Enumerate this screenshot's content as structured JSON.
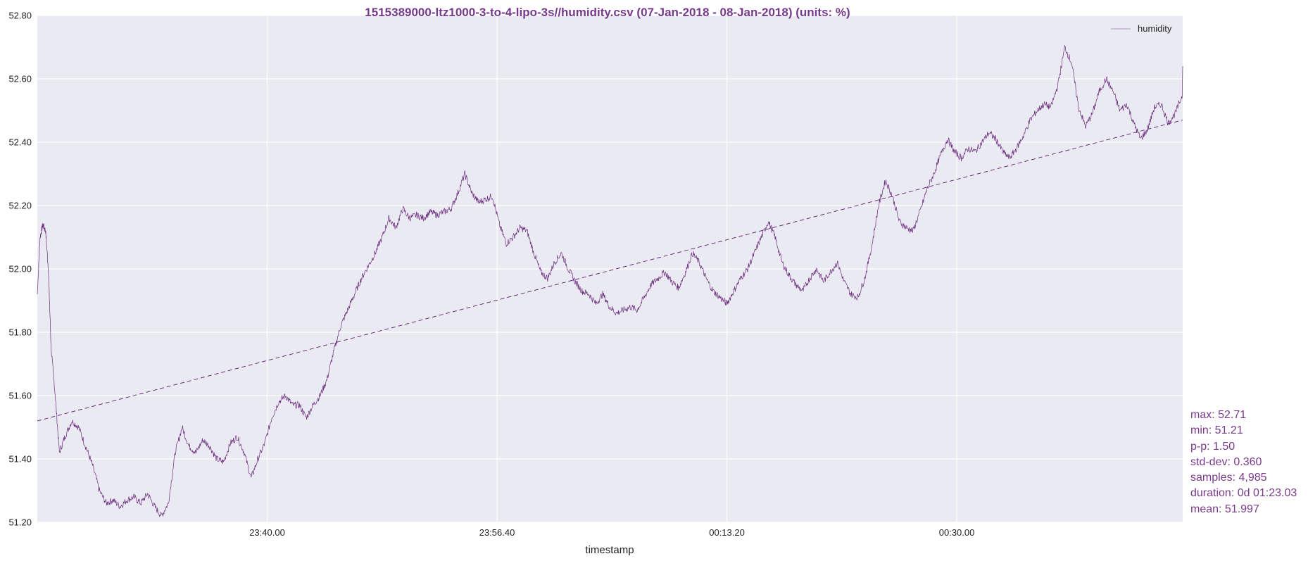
{
  "colors": {
    "series": "#6b2c7e",
    "title": "#763a8c",
    "stats": "#7a3a8c",
    "plot_bg": "#eaeaf2",
    "grid": "#ffffff"
  },
  "chart_data": {
    "type": "line",
    "title": "1515389000-ltz1000-3-to-4-lipo-3s//humidity.csv (07-Jan-2018 - 08-Jan-2018) (units: %)",
    "xlabel": "timestamp",
    "ylabel": "",
    "x_range": [
      "23:23.20",
      "00:46.23"
    ],
    "ylim": [
      51.2,
      52.8
    ],
    "yticks": [
      "51.20",
      "51.40",
      "51.60",
      "51.80",
      "52.00",
      "52.20",
      "52.40",
      "52.60",
      "52.80"
    ],
    "xticks": [
      "23:40.00",
      "23:56.40",
      "00:13.20",
      "00:30.00"
    ],
    "grid": true,
    "legend": {
      "placement": "top-right",
      "entries": [
        "humidity"
      ]
    },
    "series": [
      {
        "name": "humidity",
        "style": "solid",
        "x_min_since_start": [
          0,
          0.2,
          0.4,
          0.6,
          0.8,
          1.0,
          1.3,
          1.6,
          2.0,
          2.5,
          3.0,
          3.5,
          4.0,
          4.5,
          5.0,
          5.5,
          6.0,
          6.5,
          7.0,
          7.5,
          8.0,
          8.5,
          9.0,
          9.5,
          10.0,
          10.5,
          11.0,
          11.5,
          12.0,
          12.5,
          13.0,
          13.5,
          14.0,
          14.5,
          15.0,
          15.5,
          16.0,
          16.5,
          17.0,
          17.5,
          18.0,
          18.5,
          19.0,
          19.5,
          20.0,
          20.5,
          21.0,
          21.5,
          22.0,
          22.5,
          23.0,
          23.5,
          24.0,
          24.5,
          25.0,
          25.5,
          26.0,
          26.5,
          27.0,
          27.5,
          28.0,
          28.5,
          29.0,
          29.5,
          30.0,
          30.5,
          31.0,
          31.5,
          32.0,
          32.5,
          33.0,
          33.5,
          34.0,
          34.5,
          35.0,
          35.5,
          36.0,
          36.5,
          37.0,
          37.5,
          38.0,
          38.5,
          39.0,
          39.5,
          40.0,
          40.5,
          41.0,
          41.5,
          42.0,
          42.5,
          43.0,
          43.5,
          44.0,
          44.5,
          45.0,
          45.5,
          46.0,
          46.5,
          47.0,
          47.5,
          48.0,
          48.5,
          49.0,
          49.5,
          50.0,
          50.5,
          51.0,
          51.5,
          52.0,
          52.5,
          53.0,
          53.5,
          54.0,
          54.5,
          55.0,
          55.5,
          56.0,
          56.5,
          57.0,
          57.5,
          58.0,
          58.5,
          59.0,
          59.5,
          60.0,
          60.5,
          61.0,
          61.5,
          62.0,
          62.5,
          63.0,
          63.5,
          64.0,
          64.5,
          65.0,
          65.5,
          66.0,
          66.5,
          67.0,
          67.5,
          68.0,
          68.5,
          69.0,
          69.5,
          70.0,
          70.5,
          71.0,
          71.5,
          72.0,
          72.5,
          73.0,
          73.5,
          74.0,
          74.5,
          75.0,
          75.5,
          76.0,
          76.5,
          77.0,
          77.5,
          78.0,
          78.5,
          79.0,
          79.5,
          80.0,
          80.5,
          81.0,
          81.5,
          82.0,
          82.5,
          83.05
        ],
        "y": [
          51.92,
          52.1,
          52.14,
          52.12,
          52.0,
          51.75,
          51.6,
          51.42,
          51.47,
          51.52,
          51.5,
          51.44,
          51.38,
          51.3,
          51.26,
          51.27,
          51.25,
          51.27,
          51.28,
          51.26,
          51.29,
          51.25,
          51.22,
          51.26,
          51.42,
          51.5,
          51.44,
          51.42,
          51.46,
          51.44,
          51.4,
          51.39,
          51.45,
          51.47,
          51.42,
          51.34,
          51.4,
          51.45,
          51.53,
          51.58,
          51.6,
          51.57,
          51.57,
          51.53,
          51.57,
          51.6,
          51.65,
          51.74,
          51.82,
          51.87,
          51.92,
          51.97,
          52.01,
          52.05,
          52.1,
          52.16,
          52.13,
          52.19,
          52.16,
          52.17,
          52.16,
          52.18,
          52.17,
          52.18,
          52.19,
          52.24,
          52.3,
          52.24,
          52.21,
          52.22,
          52.23,
          52.14,
          52.08,
          52.1,
          52.13,
          52.12,
          52.05,
          51.99,
          51.97,
          52.02,
          52.05,
          52.0,
          51.96,
          51.93,
          51.92,
          51.89,
          51.92,
          51.88,
          51.86,
          51.87,
          51.88,
          51.87,
          51.91,
          51.95,
          51.97,
          51.99,
          51.96,
          51.94,
          51.99,
          52.05,
          52.02,
          51.97,
          51.93,
          51.91,
          51.89,
          51.93,
          51.97,
          52.0,
          52.05,
          52.1,
          52.15,
          52.1,
          52.02,
          51.98,
          51.95,
          51.93,
          51.97,
          52.0,
          51.96,
          51.99,
          52.02,
          51.96,
          51.92,
          51.91,
          51.97,
          52.07,
          52.2,
          52.28,
          52.23,
          52.15,
          52.13,
          52.12,
          52.18,
          52.25,
          52.3,
          52.36,
          52.41,
          52.37,
          52.35,
          52.38,
          52.37,
          52.4,
          52.43,
          52.41,
          52.37,
          52.35,
          52.38,
          52.42,
          52.47,
          52.5,
          52.52,
          52.51,
          52.58,
          52.7,
          52.65,
          52.51,
          52.45,
          52.49,
          52.56,
          52.6,
          52.56,
          52.5,
          52.52,
          52.46,
          52.41,
          52.44,
          52.51,
          52.52,
          52.46,
          52.49,
          52.55,
          52.57,
          52.64
        ]
      },
      {
        "name": "humidity-continued",
        "style": "solid",
        "x_min_since_start": [
          83.05
        ],
        "y": [
          52.64
        ]
      },
      {
        "name": "trend",
        "style": "dashed",
        "x_min_since_start": [
          0,
          83.05
        ],
        "y": [
          51.52,
          52.47
        ]
      }
    ]
  },
  "stats": {
    "max": "max: 52.71",
    "min": "min: 51.21",
    "pp": "p-p: 1.50",
    "std": "std-dev: 0.360",
    "samples": "samples: 4,985",
    "duration": "duration: 0d 01:23.03",
    "mean": "mean: 51.997"
  }
}
